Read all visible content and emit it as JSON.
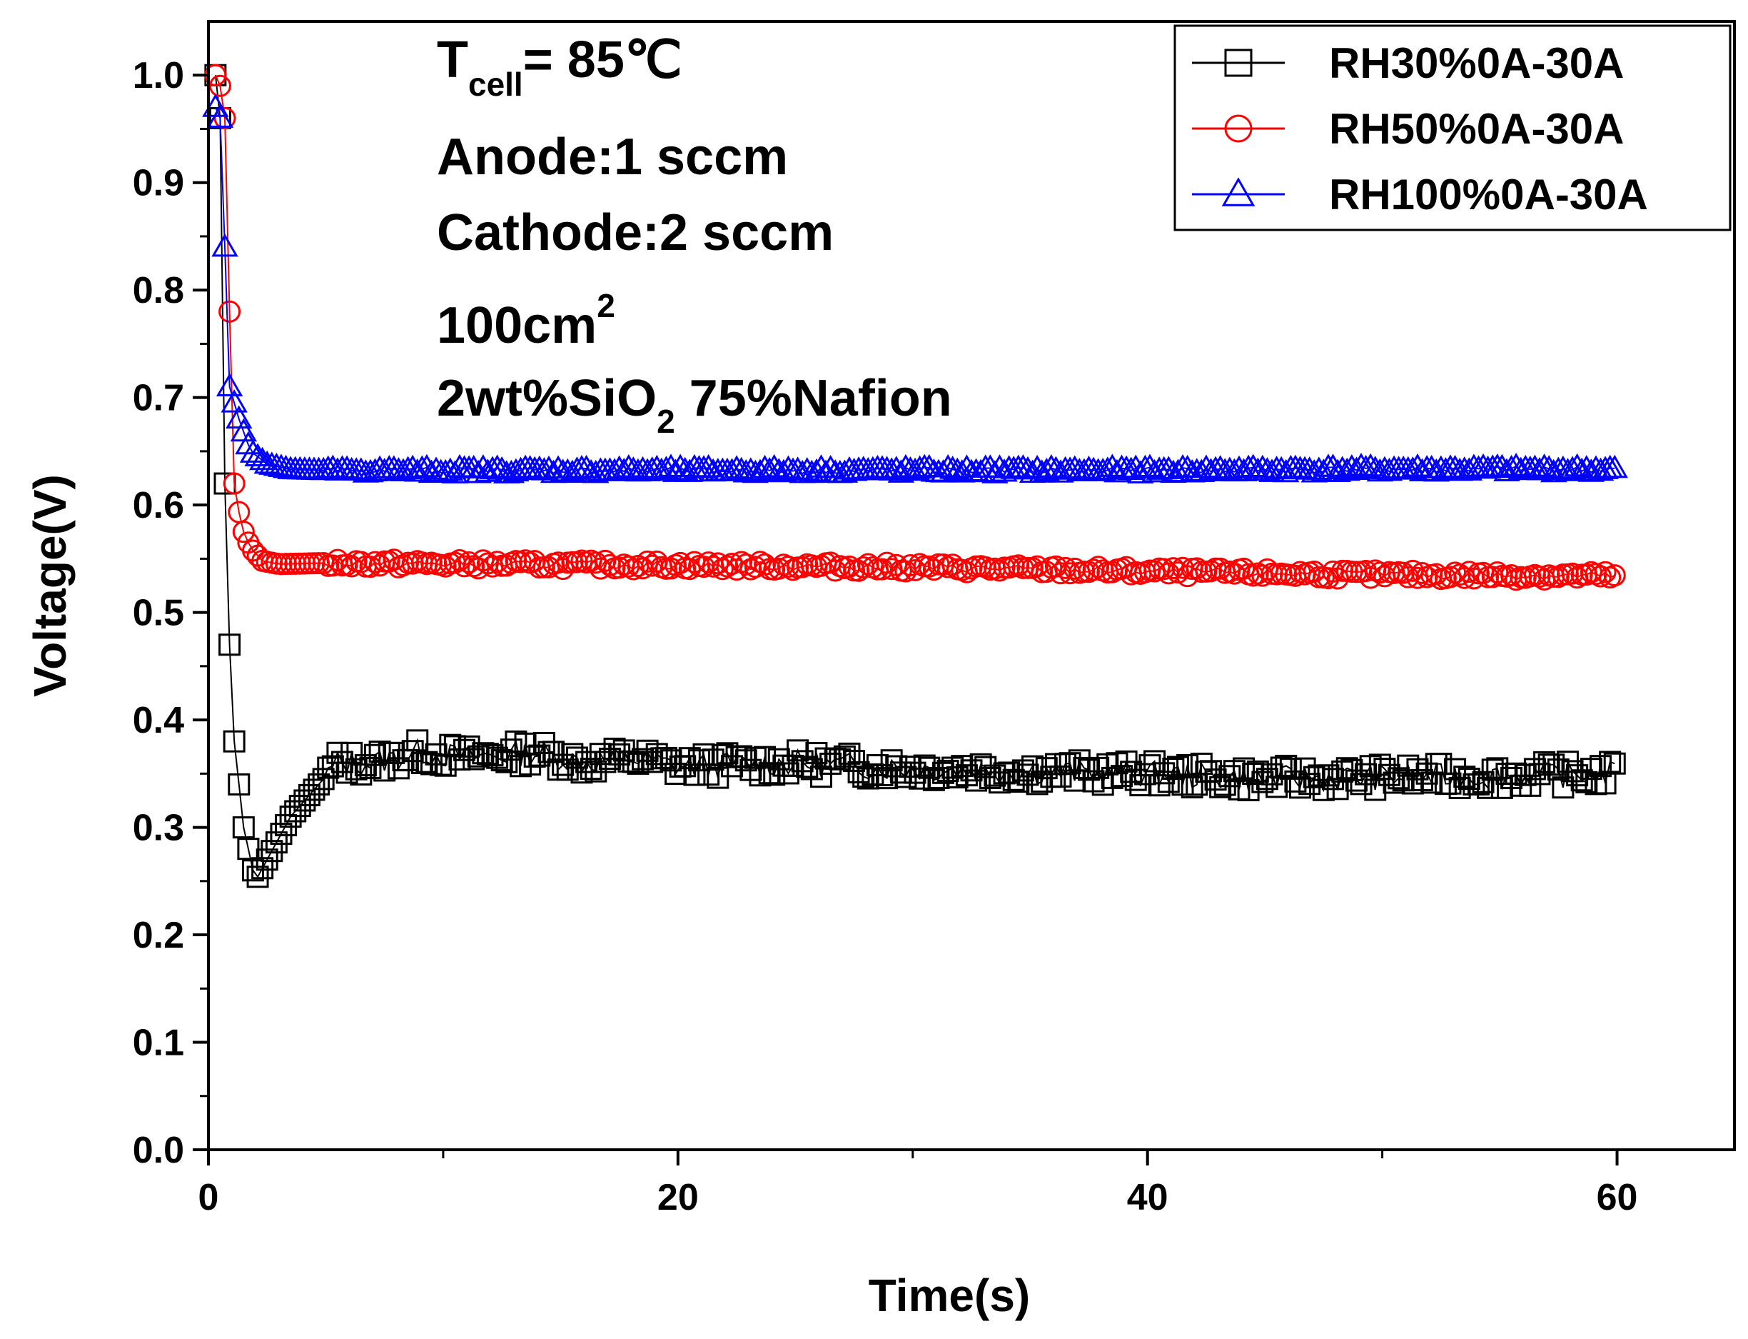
{
  "chart_data": {
    "type": "scatter",
    "title": "",
    "xlabel": "Time(s)",
    "ylabel": "Voltage(V)",
    "xlim": [
      0,
      65
    ],
    "ylim": [
      0.0,
      1.05
    ],
    "x_ticks": [
      0,
      20,
      40,
      60
    ],
    "x_tick_labels": [
      "0",
      "20",
      "40",
      "60"
    ],
    "y_ticks": [
      0.0,
      0.1,
      0.2,
      0.3,
      0.4,
      0.5,
      0.6,
      0.7,
      0.8,
      0.9,
      1.0
    ],
    "y_tick_labels": [
      "0.0",
      "0.1",
      "0.2",
      "0.3",
      "0.4",
      "0.5",
      "0.6",
      "0.7",
      "0.8",
      "0.9",
      "1.0"
    ],
    "legend_position": "top-right",
    "series": [
      {
        "name": "RH30%0A-30A",
        "color": "#000000",
        "marker": "square",
        "keypoints": [
          [
            0.3,
            1.0
          ],
          [
            0.5,
            0.96
          ],
          [
            0.7,
            0.62
          ],
          [
            0.9,
            0.47
          ],
          [
            1.1,
            0.38
          ],
          [
            1.5,
            0.3
          ],
          [
            2.0,
            0.25
          ],
          [
            2.5,
            0.27
          ],
          [
            3.5,
            0.31
          ],
          [
            4.5,
            0.335
          ],
          [
            5.5,
            0.36
          ],
          [
            7,
            0.36
          ],
          [
            9,
            0.37
          ],
          [
            11,
            0.365
          ],
          [
            14,
            0.37
          ],
          [
            16,
            0.36
          ],
          [
            18,
            0.365
          ],
          [
            20,
            0.357
          ],
          [
            25,
            0.36
          ],
          [
            30,
            0.355
          ],
          [
            35,
            0.352
          ],
          [
            40,
            0.35
          ],
          [
            45,
            0.345
          ],
          [
            50,
            0.347
          ],
          [
            55,
            0.348
          ],
          [
            60,
            0.35
          ]
        ]
      },
      {
        "name": "RH50%0A-30A",
        "color": "#ff0000",
        "marker": "circle",
        "keypoints": [
          [
            0.3,
            1.0
          ],
          [
            0.5,
            0.99
          ],
          [
            0.7,
            0.96
          ],
          [
            0.9,
            0.78
          ],
          [
            1.1,
            0.62
          ],
          [
            1.4,
            0.58
          ],
          [
            1.8,
            0.56
          ],
          [
            2.3,
            0.548
          ],
          [
            3,
            0.545
          ],
          [
            5,
            0.546
          ],
          [
            10,
            0.545
          ],
          [
            20,
            0.544
          ],
          [
            30,
            0.542
          ],
          [
            40,
            0.538
          ],
          [
            50,
            0.535
          ],
          [
            60,
            0.534
          ]
        ]
      },
      {
        "name": "RH100%0A-30A",
        "color": "#0000ff",
        "marker": "triangle",
        "keypoints": [
          [
            0.3,
            0.97
          ],
          [
            0.5,
            0.96
          ],
          [
            0.7,
            0.84
          ],
          [
            0.9,
            0.71
          ],
          [
            1.3,
            0.68
          ],
          [
            1.8,
            0.65
          ],
          [
            2.5,
            0.638
          ],
          [
            3.5,
            0.633
          ],
          [
            5,
            0.632
          ],
          [
            10,
            0.632
          ],
          [
            20,
            0.632
          ],
          [
            30,
            0.632
          ],
          [
            40,
            0.632
          ],
          [
            50,
            0.633
          ],
          [
            60,
            0.633
          ]
        ]
      }
    ],
    "annotations": {
      "temperature_main": "T",
      "temperature_sub": "cell",
      "temperature_value": "= 85℃",
      "anode": "Anode:1 sccm",
      "cathode": "Cathode:2 sccm",
      "area_main": "100cm",
      "area_sup": "2",
      "membrane_a": "2wt%SiO",
      "membrane_sub": "2",
      "membrane_b": " 75%Nafion"
    }
  }
}
